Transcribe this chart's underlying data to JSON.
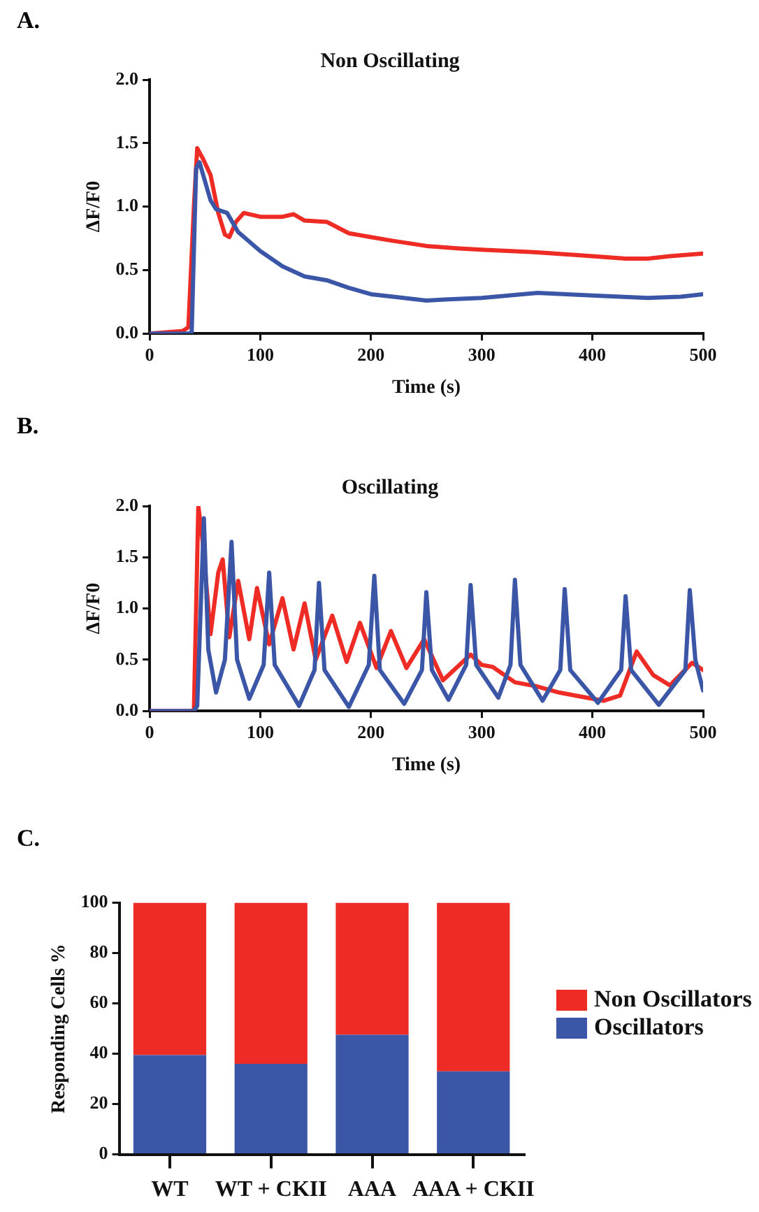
{
  "chart_data": [
    {
      "type": "line",
      "title": "Non Oscillating",
      "xlabel": "Time (s)",
      "ylabel": "ΔF/F0",
      "annotations": [
        "A."
      ],
      "marker": "none",
      "grid": false,
      "xlim": [
        0,
        500
      ],
      "xticks": [
        0,
        100,
        200,
        300,
        400,
        500
      ],
      "ylim": [
        0,
        2.0
      ],
      "yticks": [
        {
          "value": 0,
          "label": "0.0"
        },
        0.5,
        {
          "value": 1,
          "label": "1.0"
        },
        1.5,
        {
          "value": 2,
          "label": "2.0"
        }
      ],
      "series": [
        {
          "color": "#3b56a6",
          "x": [
            0,
            35,
            38,
            42,
            45,
            50,
            55,
            60,
            70,
            80,
            100,
            120,
            140,
            160,
            180,
            200,
            220,
            250,
            270,
            300,
            350,
            400,
            450,
            480,
            500
          ],
          "values": [
            0,
            0,
            0.01,
            1.3,
            1.35,
            1.2,
            1.05,
            0.98,
            0.95,
            0.8,
            0.65,
            0.53,
            0.45,
            0.42,
            0.36,
            0.31,
            0.29,
            0.26,
            0.27,
            0.28,
            0.32,
            0.3,
            0.28,
            0.29,
            0.31
          ]
        },
        {
          "color": "#ee2b24",
          "x": [
            0,
            30,
            35,
            40,
            43,
            48,
            55,
            62,
            68,
            72,
            78,
            85,
            100,
            120,
            130,
            140,
            160,
            180,
            200,
            220,
            250,
            280,
            300,
            350,
            400,
            430,
            450,
            470,
            500
          ],
          "values": [
            0,
            0.02,
            0.05,
            1.0,
            1.46,
            1.38,
            1.25,
            0.95,
            0.78,
            0.76,
            0.88,
            0.95,
            0.92,
            0.92,
            0.94,
            0.89,
            0.88,
            0.79,
            0.76,
            0.73,
            0.69,
            0.67,
            0.66,
            0.64,
            0.61,
            0.59,
            0.59,
            0.61,
            0.63
          ]
        }
      ]
    },
    {
      "type": "line",
      "title": "Oscillating",
      "xlabel": "Time (s)",
      "ylabel": "ΔF/F0",
      "annotations": [
        "B."
      ],
      "marker": "none",
      "grid": false,
      "xlim": [
        0,
        500
      ],
      "xticks": [
        0,
        100,
        200,
        300,
        400,
        500
      ],
      "ylim": [
        0,
        2.0
      ],
      "yticks": [
        {
          "value": 0,
          "label": "0.0"
        },
        0.5,
        {
          "value": 1,
          "label": "1.0"
        },
        1.5,
        {
          "value": 2,
          "label": "2.0"
        }
      ],
      "series": [
        {
          "color": "#3b56a6",
          "x": [
            0,
            40,
            43,
            49,
            53,
            60,
            68,
            74,
            79,
            90,
            103,
            108,
            113,
            135,
            149,
            153,
            158,
            180,
            198,
            203,
            208,
            230,
            246,
            250,
            255,
            270,
            286,
            290,
            295,
            315,
            326,
            330,
            335,
            355,
            371,
            375,
            380,
            405,
            426,
            430,
            435,
            460,
            484,
            488,
            493,
            500
          ],
          "values": [
            0,
            0,
            0.05,
            1.88,
            0.6,
            0.18,
            0.5,
            1.65,
            0.5,
            0.12,
            0.45,
            1.35,
            0.45,
            0.05,
            0.4,
            1.25,
            0.4,
            0.04,
            0.45,
            1.32,
            0.4,
            0.07,
            0.4,
            1.16,
            0.4,
            0.11,
            0.45,
            1.23,
            0.45,
            0.13,
            0.45,
            1.28,
            0.45,
            0.1,
            0.4,
            1.19,
            0.4,
            0.08,
            0.4,
            1.12,
            0.4,
            0.06,
            0.4,
            1.18,
            0.5,
            0.2
          ]
        },
        {
          "color": "#ee2b24",
          "x": [
            0,
            40,
            44,
            48,
            55,
            62,
            66,
            72,
            80,
            90,
            97,
            108,
            120,
            130,
            140,
            150,
            165,
            178,
            190,
            205,
            218,
            232,
            248,
            265,
            290,
            300,
            310,
            330,
            350,
            370,
            390,
            410,
            425,
            440,
            455,
            470,
            490,
            500
          ],
          "values": [
            0,
            0,
            2.0,
            1.65,
            0.75,
            1.35,
            1.48,
            0.72,
            1.27,
            0.7,
            1.2,
            0.65,
            1.1,
            0.6,
            1.05,
            0.5,
            0.93,
            0.48,
            0.86,
            0.42,
            0.78,
            0.42,
            0.7,
            0.3,
            0.55,
            0.45,
            0.43,
            0.28,
            0.24,
            0.18,
            0.14,
            0.1,
            0.15,
            0.58,
            0.35,
            0.25,
            0.47,
            0.4
          ]
        }
      ]
    },
    {
      "type": "bar",
      "stacked": true,
      "ylabel": "Responding Cells %",
      "annotations": [
        "C."
      ],
      "legend": "right",
      "grid": false,
      "categories": [
        "WT",
        "WT + CKII",
        "AAA",
        "AAA + CKII"
      ],
      "ylim": [
        0,
        100
      ],
      "yticks": [
        0,
        20,
        40,
        60,
        80,
        100
      ],
      "series": [
        {
          "name": "Oscillators",
          "color": "#3b56a6",
          "values": [
            39.5,
            36,
            47.5,
            33
          ]
        },
        {
          "name": "Non Oscillators",
          "color": "#ee2b24",
          "values": [
            60.5,
            64,
            52.5,
            67
          ]
        }
      ]
    }
  ]
}
